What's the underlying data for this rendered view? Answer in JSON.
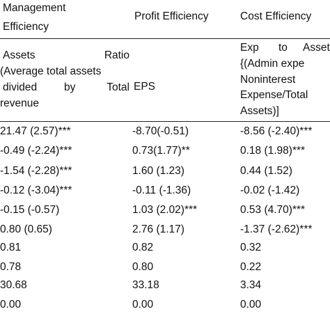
{
  "header": {
    "col1": [
      "Management",
      "Efficiency"
    ],
    "col2": "Profit Efficiency",
    "col3": "Cost Efficiency"
  },
  "subheader": {
    "col1": {
      "line1_left": "Assets",
      "line1_right": "Ratio",
      "line2": "(Average total assets",
      "line3_left": "divided",
      "line3_mid": "by",
      "line3_right": "Total",
      "line4": "revenue"
    },
    "col2": "EPS",
    "col3": {
      "line1_a": "Exp",
      "line1_b": "to",
      "line1_c": "Asset",
      "line2": "{(Admin expe",
      "line3": "Noninterest",
      "line4": "Expense/Total",
      "line5": "Assets)]"
    }
  },
  "rows": [
    [
      "21.47 (2.57)***",
      "-8.70(-0.51)",
      "-8.56 (-2.40)***"
    ],
    [
      "-0.49 (-2.24)***",
      "0.73(1.77)**",
      "0.18 (1.98)***"
    ],
    [
      "-1.54 (-2.28)***",
      "1.60 (1.23)",
      "0.44 (1.52)"
    ],
    [
      "-0.12 (-3.04)***",
      "-0.11 (-1.36)",
      "-0.02 (-1.42)"
    ],
    [
      "-0.15 (-0.57)",
      "1.03 (2.02)***",
      "0.53 (4.70)***"
    ],
    [
      "0.80 (0.65)",
      "2.76 (1.17)",
      "-1.37 (-2.62)***"
    ],
    [
      "0.81",
      "0.82",
      "0.32"
    ],
    [
      "0.78",
      "0.80",
      "0.22"
    ],
    [
      "30.68",
      "33.18",
      "3.34"
    ],
    [
      "0.00",
      "0.00",
      "0.00"
    ]
  ]
}
